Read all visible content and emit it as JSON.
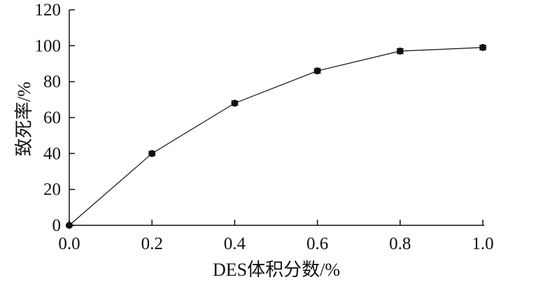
{
  "chart_data": {
    "type": "line",
    "x": [
      0.0,
      0.2,
      0.4,
      0.6,
      0.8,
      1.0
    ],
    "series": [
      {
        "values": [
          0,
          40,
          68,
          86,
          97,
          99
        ],
        "errors": [
          0.5,
          1.2,
          1.2,
          1.3,
          1.4,
          1.3
        ]
      }
    ],
    "xlabel": "DES体积分数/%",
    "ylabel": "致死率/%",
    "xlim": [
      0.0,
      1.0
    ],
    "ylim": [
      0,
      120
    ],
    "xticks": [
      "0.0",
      "0.2",
      "0.4",
      "0.6",
      "0.8",
      "1.0"
    ],
    "yticks": [
      "0",
      "20",
      "40",
      "60",
      "80",
      "100",
      "120"
    ],
    "grid": false,
    "colors": {
      "line": "#111111",
      "marker": "#111111",
      "axis": "#111111"
    }
  }
}
